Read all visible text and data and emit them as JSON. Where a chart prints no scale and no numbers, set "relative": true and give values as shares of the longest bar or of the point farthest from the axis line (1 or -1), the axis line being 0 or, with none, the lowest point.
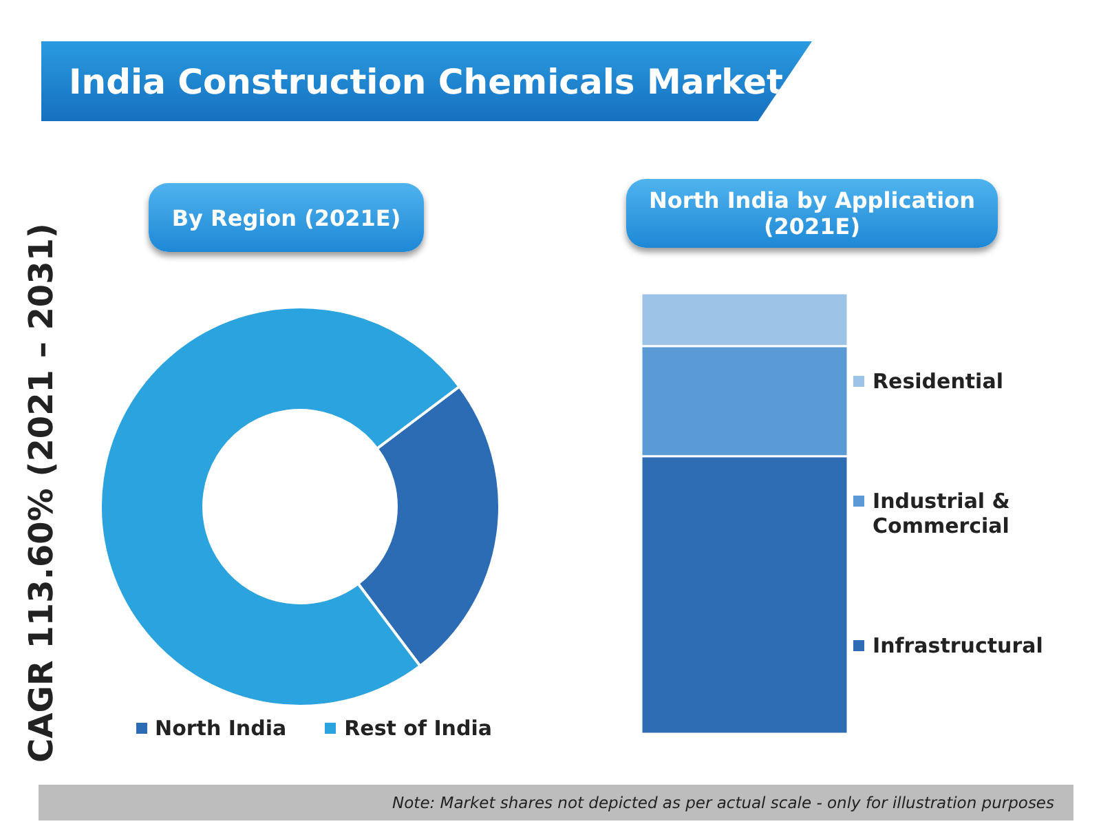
{
  "chart_data": [
    {
      "type": "donut",
      "title": "India Construction Chemicals Market",
      "subtitle": "By Region (2021E)",
      "categories": [
        "North India",
        "Rest of India"
      ],
      "values": [
        25,
        75
      ],
      "colors": [
        "#2b6cb5",
        "#2aa3df"
      ],
      "legend": "bottom",
      "annotations": [
        "CAGR 113.60% (2021 – 2031)",
        "Note: Market shares not depicted as per actual scale - only for illustration purposes"
      ]
    },
    {
      "type": "bar",
      "title": "North India by Application (2021E)",
      "categories": [
        null
      ],
      "relative": true,
      "stacked": true,
      "legend": "right",
      "series": [
        {
          "name": "Infrastructural",
          "color": "#2e6db4",
          "values": [
            0.63
          ]
        },
        {
          "name": "Industrial & Commercial",
          "color": "#5b9bd5",
          "values": [
            0.25
          ]
        },
        {
          "name": "Residential",
          "color": "#9dc3e6",
          "values": [
            0.12
          ]
        }
      ]
    }
  ]
}
